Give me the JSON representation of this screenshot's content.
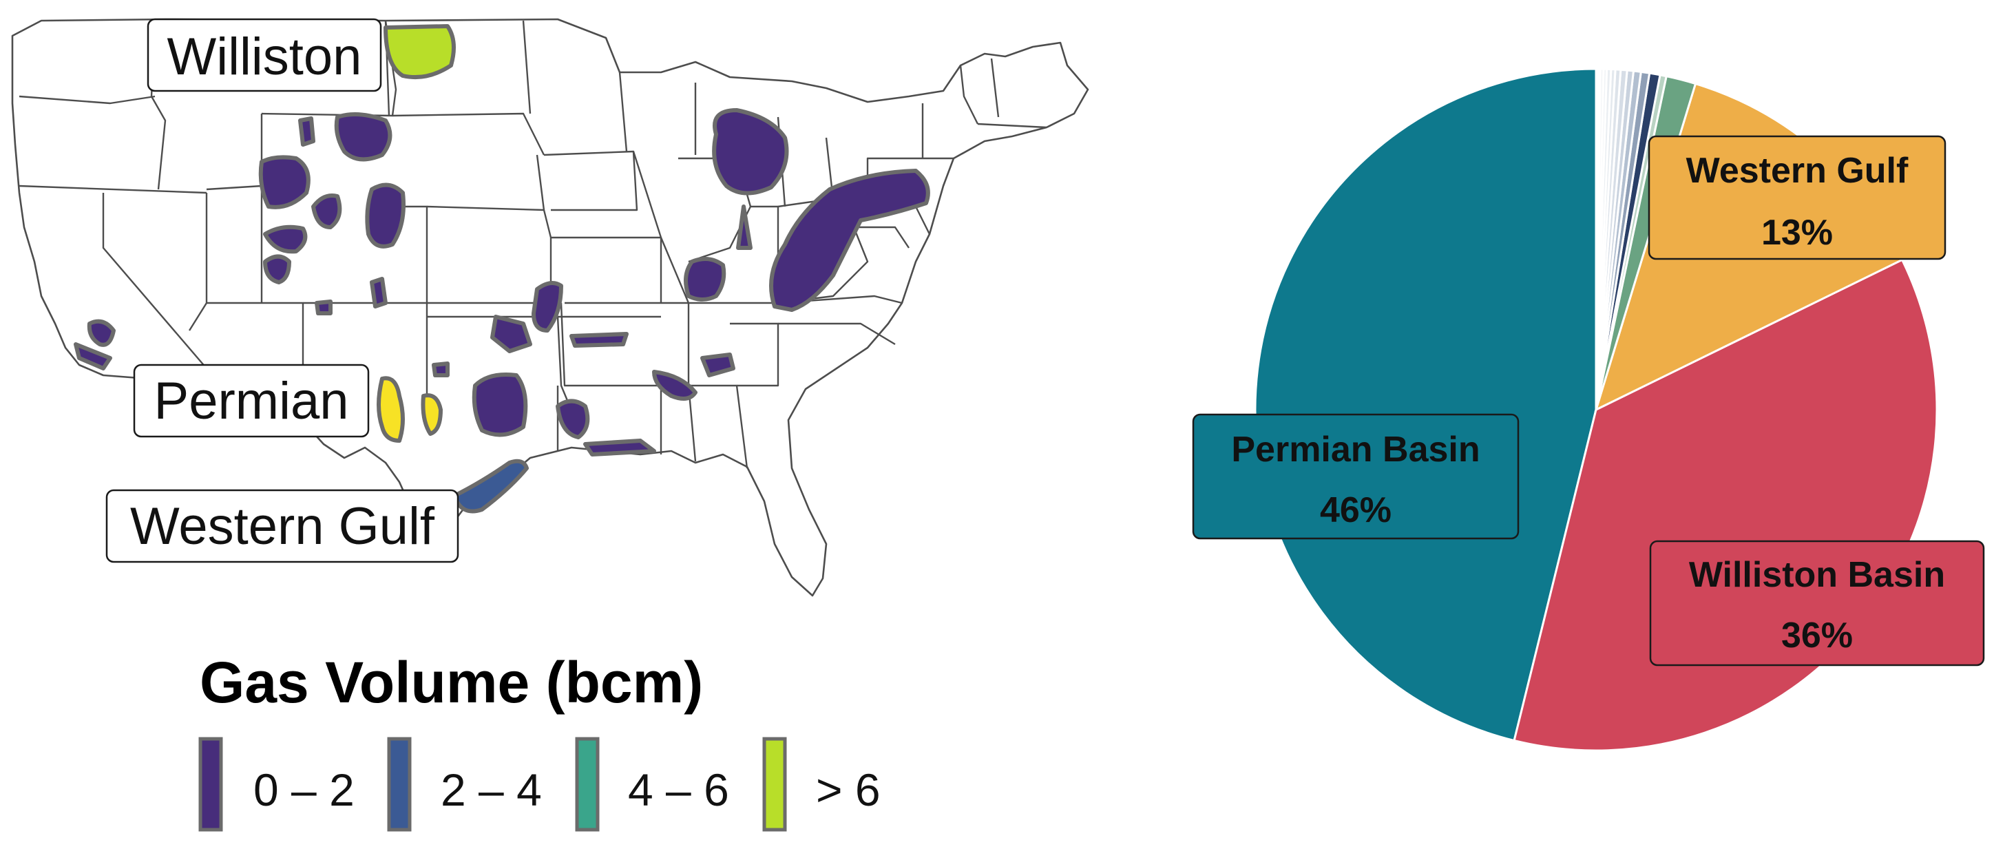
{
  "colors": {
    "bin_0_2": "#472d7b",
    "bin_2_4": "#3b5a94",
    "bin_4_6": "#3aa58b",
    "bin_gt_6": "#b8de29",
    "permian_field": "#f7e225",
    "permian_slice": "#0e798d",
    "williston_slice": "#d0465a",
    "western_gulf_slice": "#eeae48"
  },
  "map": {
    "type": "choropleth-map",
    "callouts": [
      {
        "label": "Williston",
        "bin": "> 6"
      },
      {
        "label": "Permian",
        "bin": "> 6"
      },
      {
        "label": "Western Gulf",
        "bin": "2 – 4"
      }
    ],
    "legend": {
      "title": "Gas Volume (bcm)",
      "items": [
        {
          "label": "0 – 2",
          "color": "#472d7b"
        },
        {
          "label": "2 – 4",
          "color": "#3b5a94"
        },
        {
          "label": "4 – 6",
          "color": "#3aa58b"
        },
        {
          "label": "> 6",
          "color": "#b8de29"
        }
      ]
    }
  },
  "chart_data": {
    "type": "pie",
    "slices": [
      {
        "name": "Permian Basin",
        "value": 46,
        "label": "Permian Basin",
        "pct_label": "46%",
        "color": "#0e798d"
      },
      {
        "name": "Williston Basin",
        "value": 36,
        "label": "Williston Basin",
        "pct_label": "36%",
        "color": "#d0465a"
      },
      {
        "name": "Western Gulf",
        "value": 13,
        "label": "Western Gulf",
        "pct_label": "13%",
        "color": "#eeae48"
      },
      {
        "name": "",
        "value": 1.4,
        "color": "#6aa382"
      },
      {
        "name": "",
        "value": 0.3,
        "color": "#b9d3c3"
      },
      {
        "name": "",
        "value": 0.5,
        "color": "#2a3f67"
      },
      {
        "name": "",
        "value": 0.4,
        "color": "#8f9fb6"
      },
      {
        "name": "",
        "value": 0.35,
        "color": "#b2bfd0"
      },
      {
        "name": "",
        "value": 0.3,
        "color": "#c9d2de"
      },
      {
        "name": "",
        "value": 0.3,
        "color": "#d6dde6"
      },
      {
        "name": "",
        "value": 0.25,
        "color": "#dde3ea"
      },
      {
        "name": "",
        "value": 0.2,
        "color": "#e4e9ee"
      },
      {
        "name": "",
        "value": 0.2,
        "color": "#eaeef2"
      },
      {
        "name": "",
        "value": 0.15,
        "color": "#eff2f5"
      },
      {
        "name": "",
        "value": 0.15,
        "color": "#f3f5f7"
      },
      {
        "name": "",
        "value": 0.1,
        "color": "#f6f7f9"
      },
      {
        "name": "",
        "value": 0.1,
        "color": "#f8f9fa"
      }
    ]
  }
}
